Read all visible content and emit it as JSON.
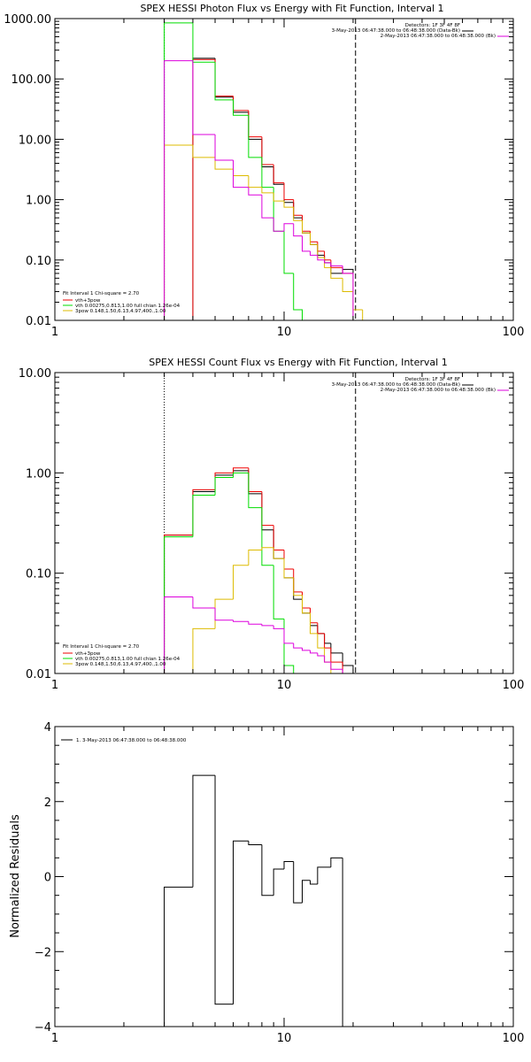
{
  "colors": {
    "black": "#000000",
    "red": "#ee0000",
    "green": "#00dd00",
    "yellow": "#ddbb00",
    "magenta": "#dd00dd"
  },
  "chart_data": [
    {
      "type": "line",
      "title": "SPEX HESSI Photon Flux vs Energy with Fit Function, Interval 1",
      "xscale": "log",
      "yscale": "log",
      "xlim": [
        1,
        100
      ],
      "ylim": [
        0.01,
        1000
      ],
      "x_ticks": [
        "1",
        "10",
        "100"
      ],
      "y_ticks": [
        "0.01",
        "0.10",
        "1.00",
        "10.00",
        "100.00",
        "1000.00"
      ],
      "vlines": [
        {
          "x": 3,
          "style": "dotted"
        },
        {
          "x": 20.5,
          "style": "dashed"
        }
      ],
      "header_lines": [
        "Detectors: 1F 3F 4F 8F",
        "3-May-2013 06:47:38.000 to 06:48:38.000 (Data-Bk)",
        "2-May-2013 06:47:38.000 to 06:48:38.000 (Bk)"
      ],
      "legend": [
        "Fit Interval 1   Chi-square = 2.70",
        "vth+3pow",
        "vth 0.00275,0.813,1.00  full chian 1.26e-04",
        "3pow 0.148,1.50,6.13,4.97,400.,1.00"
      ],
      "series": [
        {
          "name": "Data-Bk",
          "color": "#000000",
          "edges": [
            3.0,
            4.0,
            5.0,
            6.0,
            7.0,
            8.0,
            9.0,
            10.0,
            11.0,
            12.0,
            13.0,
            14.0,
            15.0,
            16.0,
            18.0,
            20.0
          ],
          "values": [
            null,
            220,
            50,
            28,
            10,
            3.5,
            1.8,
            0.9,
            0.5,
            0.28,
            0.18,
            0.12,
            0.09,
            0.06,
            0.07
          ]
        },
        {
          "name": "vth+3pow",
          "color": "#ee0000",
          "edges": [
            3.0,
            4.0,
            5.0,
            6.0,
            7.0,
            8.0,
            9.0,
            10.0,
            11.0,
            12.0,
            13.0,
            14.0,
            15.0,
            16.0,
            18.0,
            20.0
          ],
          "values": [
            null,
            210,
            52,
            30,
            11,
            3.8,
            1.9,
            1.0,
            0.55,
            0.3,
            0.2,
            0.14,
            0.1,
            0.075,
            0.06
          ]
        },
        {
          "name": "vth",
          "color": "#00dd00",
          "edges": [
            3.0,
            4.0,
            5.0,
            6.0,
            7.0,
            8.0,
            9.0,
            10.0,
            11.0,
            12.0
          ],
          "values": [
            850,
            190,
            45,
            25,
            5,
            1.6,
            0.3,
            0.06,
            0.015
          ]
        },
        {
          "name": "3pow",
          "color": "#ddbb00",
          "edges": [
            3.0,
            4.0,
            5.0,
            6.0,
            7.0,
            8.0,
            9.0,
            10.0,
            11.0,
            12.0,
            13.0,
            14.0,
            15.0,
            16.0,
            18.0,
            20.0,
            22.0,
            25.0
          ],
          "values": [
            8,
            5,
            3.2,
            2.5,
            1.6,
            1.3,
            0.95,
            0.75,
            0.45,
            0.28,
            0.18,
            0.11,
            0.075,
            0.05,
            0.03,
            0.015,
            0.01
          ]
        },
        {
          "name": "Bk",
          "color": "#dd00dd",
          "edges": [
            3.0,
            4.0,
            5.0,
            6.0,
            7.0,
            8.0,
            9.0,
            10.0,
            11.0,
            12.0,
            13.0,
            14.0,
            15.0,
            16.0,
            18.0,
            20.0
          ],
          "values": [
            200,
            12,
            4.5,
            1.6,
            1.2,
            0.5,
            0.3,
            0.4,
            0.25,
            0.14,
            0.12,
            0.1,
            0.09,
            0.08,
            0.06
          ]
        }
      ]
    },
    {
      "type": "line",
      "title": "SPEX HESSI Count Flux vs Energy with Fit Function, Interval 1",
      "xscale": "log",
      "yscale": "log",
      "xlim": [
        1,
        100
      ],
      "ylim": [
        0.01,
        10
      ],
      "x_ticks": [
        "1",
        "10",
        "100"
      ],
      "y_ticks": [
        "0.01",
        "0.10",
        "1.00",
        "10.00"
      ],
      "vlines": [
        {
          "x": 3,
          "style": "dotted"
        },
        {
          "x": 20.5,
          "style": "dashed"
        }
      ],
      "header_lines": [
        "Detectors: 1F 3F 4F 8F",
        "3-May-2013 06:47:38.000 to 06:48:38.000 (Data-Bk)",
        "2-May-2013 06:47:38.000 to 06:48:38.000 (Bk)"
      ],
      "legend": [
        "Fit Interval 1   Chi-square = 2.70",
        "vth+3pow",
        "vth 0.00275,0.813,1.00  full chian 1.26e-04",
        "3pow 0.148,1.50,6.13,4.97,400.,1.00"
      ],
      "series": [
        {
          "name": "Data-Bk",
          "color": "#000000",
          "edges": [
            3.0,
            4.0,
            5.0,
            6.0,
            7.0,
            8.0,
            9.0,
            10.0,
            11.0,
            12.0,
            13.0,
            14.0,
            15.0,
            16.0,
            18.0,
            20.0
          ],
          "values": [
            0.24,
            0.65,
            0.95,
            1.05,
            0.62,
            0.27,
            0.14,
            0.09,
            0.055,
            0.04,
            0.03,
            0.025,
            0.02,
            0.016,
            0.012
          ]
        },
        {
          "name": "vth+3pow",
          "color": "#ee0000",
          "edges": [
            3.0,
            4.0,
            5.0,
            6.0,
            7.0,
            8.0,
            9.0,
            10.0,
            11.0,
            12.0,
            13.0,
            14.0,
            15.0,
            16.0,
            18.0,
            20.0
          ],
          "values": [
            0.24,
            0.68,
            1.0,
            1.12,
            0.65,
            0.3,
            0.17,
            0.11,
            0.065,
            0.045,
            0.032,
            0.025,
            0.018,
            0.013,
            0.01
          ]
        },
        {
          "name": "vth",
          "color": "#00dd00",
          "edges": [
            3.0,
            4.0,
            5.0,
            6.0,
            7.0,
            8.0,
            9.0,
            10.0,
            11.0
          ],
          "values": [
            0.23,
            0.6,
            0.9,
            1.0,
            0.45,
            0.12,
            0.035,
            0.012
          ]
        },
        {
          "name": "3pow",
          "color": "#ddbb00",
          "edges": [
            4.0,
            5.0,
            6.0,
            7.0,
            8.0,
            9.0,
            10.0,
            11.0,
            12.0,
            13.0,
            14.0,
            15.0,
            16.0,
            18.0
          ],
          "values": [
            0.028,
            0.055,
            0.12,
            0.17,
            0.18,
            0.14,
            0.09,
            0.06,
            0.04,
            0.025,
            0.018,
            0.013,
            0.01
          ]
        },
        {
          "name": "Bk",
          "color": "#dd00dd",
          "edges": [
            3.0,
            4.0,
            5.0,
            6.0,
            7.0,
            8.0,
            9.0,
            10.0,
            11.0,
            12.0,
            13.0,
            14.0,
            15.0,
            16.0,
            18.0,
            20.0
          ],
          "values": [
            0.058,
            0.045,
            0.034,
            0.033,
            0.031,
            0.03,
            0.028,
            0.02,
            0.018,
            0.017,
            0.016,
            0.015,
            0.013,
            0.011,
            0.01
          ]
        }
      ]
    },
    {
      "type": "line",
      "title": "",
      "ylabel": "Normalized Residuals",
      "xscale": "log",
      "yscale": "linear",
      "xlim": [
        1,
        100
      ],
      "ylim": [
        -4,
        4
      ],
      "x_ticks": [
        "1",
        "10",
        "100"
      ],
      "y_ticks": [
        "−4",
        "−2",
        "0",
        "2",
        "4"
      ],
      "legend": [
        "1.  3-May-2013 06:47:38.000 to 06:48:38.000"
      ],
      "series": [
        {
          "name": "1.  3-May-2013 06:47:38.000 to 06:48:38.000",
          "color": "#000000",
          "edges": [
            3.0,
            4.0,
            5.0,
            6.0,
            7.0,
            8.0,
            9.0,
            10.0,
            11.0,
            12.0,
            13.0,
            14.0,
            15.0,
            16.0,
            18.0,
            20.0
          ],
          "values": [
            -0.28,
            2.7,
            -3.4,
            0.95,
            0.85,
            -0.5,
            0.2,
            0.4,
            -0.7,
            -0.1,
            -0.2,
            0.25,
            0.25,
            0.5,
            -4.0
          ]
        }
      ]
    }
  ]
}
